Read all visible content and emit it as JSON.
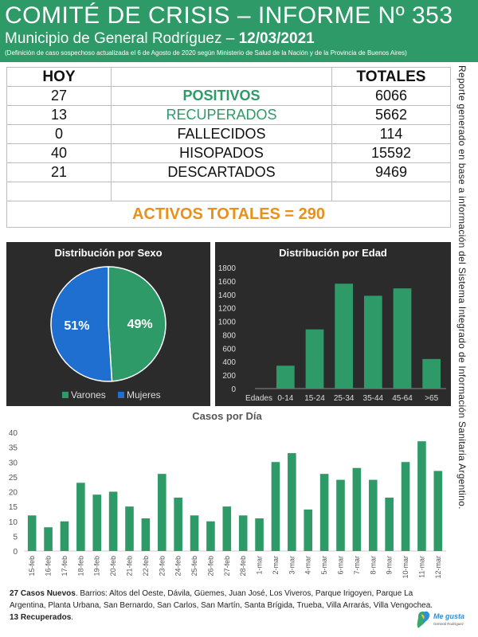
{
  "header": {
    "title": "COMITÉ DE CRISIS – INFORME Nº 353",
    "subtitle": "Municipio de General Rodríguez – ",
    "date": "12/03/2021",
    "note": "(Definición de caso sospechoso actualizada el 6 de Agosto de 2020 según Ministerio de Salud de la Nación y de la Provincia de Buenos Aires)",
    "accent_color": "#2e9a67"
  },
  "side_text": "Reporte generado en base a información del Sistema Integrado de Información Sanitaria Argentino.",
  "stats": {
    "hoy_header": "HOY",
    "totales_header": "TOTALES",
    "rows": [
      {
        "hoy": "27",
        "label": "POSITIVOS",
        "total": "6066"
      },
      {
        "hoy": "13",
        "label": "RECUPERADOS",
        "total": "5662"
      },
      {
        "hoy": "0",
        "label": "FALLECIDOS",
        "total": "114"
      },
      {
        "hoy": "40",
        "label": "HISOPADOS",
        "total": "15592"
      },
      {
        "hoy": "21",
        "label": "DESCARTADOS",
        "total": "9469"
      }
    ],
    "activos": "ACTIVOS TOTALES = 290",
    "activos_color": "#e8901a"
  },
  "chart_data": [
    {
      "type": "pie",
      "title": "Distribución por Sexo",
      "labels": [
        "Varones",
        "Mujeres"
      ],
      "values": [
        49,
        51
      ],
      "value_labels": [
        "49%",
        "51%"
      ],
      "colors": [
        "#2e9a67",
        "#1f6fd0"
      ],
      "legend": "bottom"
    },
    {
      "type": "bar",
      "title": "Distribución por Edad",
      "xlabel": "Edades",
      "categories": [
        "0-14",
        "15-24",
        "25-34",
        "35-44",
        "45-64",
        ">65"
      ],
      "values": [
        340,
        880,
        1560,
        1380,
        1490,
        440
      ],
      "ylim": [
        0,
        1800
      ],
      "yticks": [
        "0",
        "200",
        "400",
        "600",
        "800",
        "1000",
        "1200",
        "1400",
        "1600",
        "1800"
      ],
      "grid": false,
      "color": "#2e9a67"
    },
    {
      "type": "bar",
      "title": "Casos por Día",
      "categories": [
        "15-feb",
        "16-feb",
        "17-feb",
        "18-feb",
        "19-feb",
        "20-feb",
        "21-feb",
        "22-feb",
        "23-feb",
        "24-feb",
        "25-feb",
        "26-feb",
        "27-feb",
        "28-feb",
        "1-mar",
        "2-mar",
        "3-mar",
        "4-mar",
        "5-mar",
        "6-mar",
        "7-mar",
        "8-mar",
        "9-mar",
        "10-mar",
        "11-mar",
        "12-mar"
      ],
      "values": [
        12,
        8,
        10,
        23,
        19,
        20,
        15,
        11,
        26,
        18,
        12,
        10,
        15,
        12,
        11,
        30,
        33,
        14,
        26,
        24,
        28,
        24,
        18,
        30,
        37,
        27
      ],
      "ylim": [
        0,
        40
      ],
      "yticks": [
        "0",
        "5",
        "10",
        "15",
        "20",
        "25",
        "30",
        "35",
        "40"
      ],
      "grid": false,
      "color": "#2e9a67"
    }
  ],
  "footer": {
    "nuevos_bold": "27 Casos Nuevos",
    "nuevos_text": ". Barrios: Altos del Oeste, Dávila, Güemes, Juan José, Los Viveros, Parque Irigoyen, Parque La Argentina, Planta Urbana, San Bernardo, San Carlos, San Martín, Santa Brígida, Trueba, Villa Arrarás, Villa Vengochea.",
    "recuperados_bold": "13 Recuperados",
    "recuperados_text": "."
  },
  "logo": {
    "text": "Me gusta",
    "subtext": "General Rodríguez"
  }
}
